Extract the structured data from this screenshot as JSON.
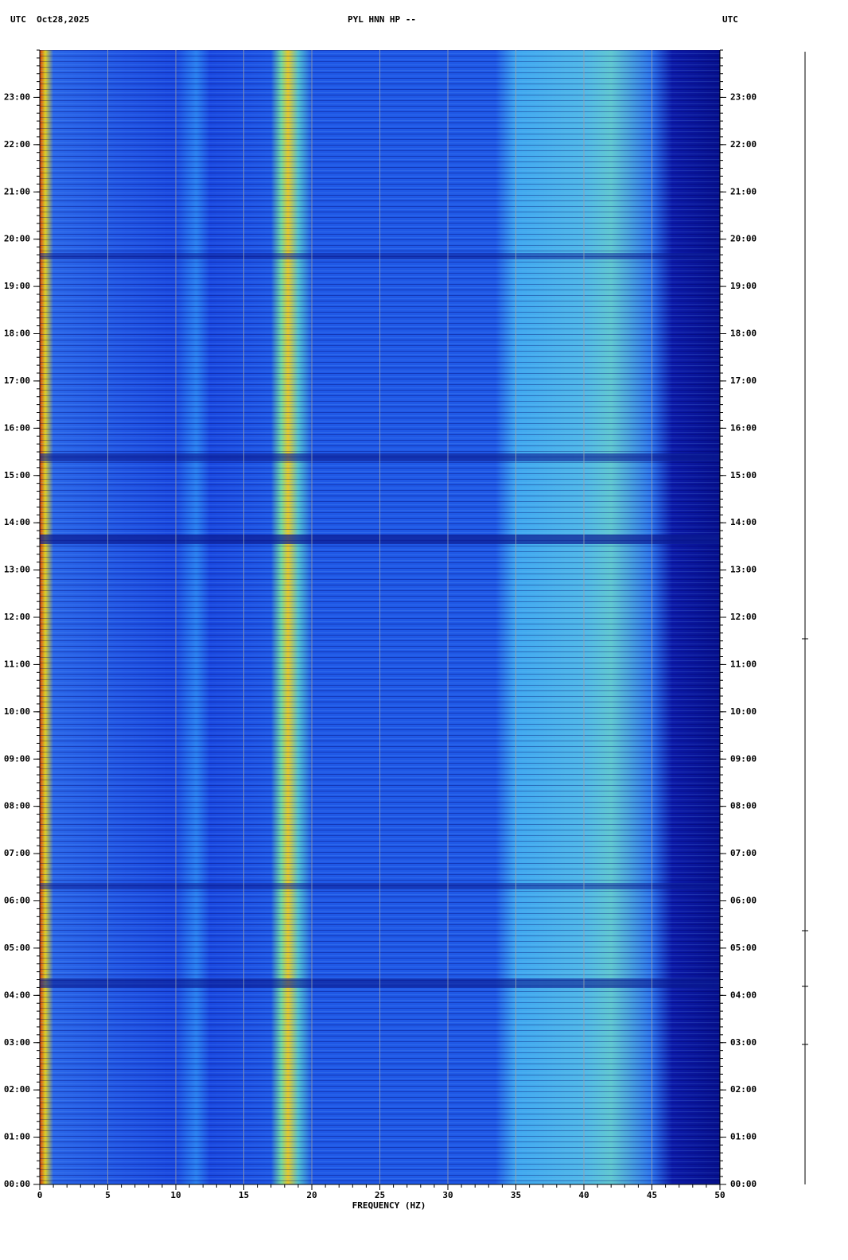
{
  "chart_data": {
    "type": "spectrogram",
    "title_left": "UTC  Oct28,2025",
    "title": "PYL HNN HP --",
    "title_right": "UTC",
    "xlabel": "FREQUENCY (HZ)",
    "xlim": [
      0,
      50
    ],
    "xticks": [
      0,
      5,
      10,
      15,
      20,
      25,
      30,
      35,
      40,
      45,
      50
    ],
    "ylim": [
      0,
      24
    ],
    "yticks": [
      {
        "value": 0,
        "label": "00:00"
      },
      {
        "value": 1,
        "label": "01:00"
      },
      {
        "value": 2,
        "label": "02:00"
      },
      {
        "value": 3,
        "label": "03:00"
      },
      {
        "value": 4,
        "label": "04:00"
      },
      {
        "value": 5,
        "label": "05:00"
      },
      {
        "value": 6,
        "label": "06:00"
      },
      {
        "value": 7,
        "label": "07:00"
      },
      {
        "value": 8,
        "label": "08:00"
      },
      {
        "value": 9,
        "label": "09:00"
      },
      {
        "value": 10,
        "label": "10:00"
      },
      {
        "value": 11,
        "label": "11:00"
      },
      {
        "value": 12,
        "label": "12:00"
      },
      {
        "value": 13,
        "label": "13:00"
      },
      {
        "value": 14,
        "label": "14:00"
      },
      {
        "value": 15,
        "label": "15:00"
      },
      {
        "value": 16,
        "label": "16:00"
      },
      {
        "value": 17,
        "label": "17:00"
      },
      {
        "value": 18,
        "label": "18:00"
      },
      {
        "value": 19,
        "label": "19:00"
      },
      {
        "value": 20,
        "label": "20:00"
      },
      {
        "value": 21,
        "label": "21:00"
      },
      {
        "value": 22,
        "label": "22:00"
      },
      {
        "value": 23,
        "label": "23:00"
      }
    ],
    "grid": true
  }
}
